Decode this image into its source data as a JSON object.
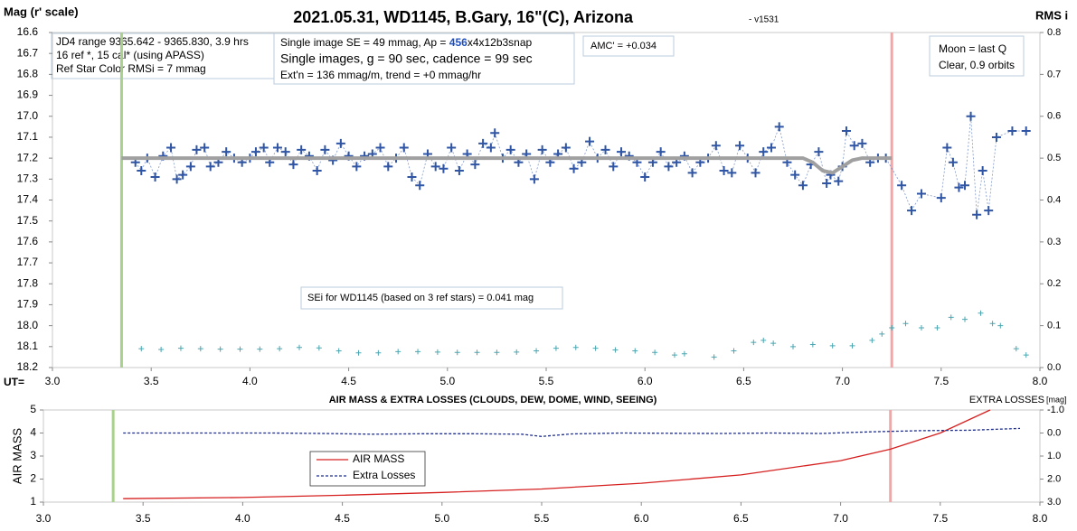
{
  "chart_data": [
    {
      "type": "scatter",
      "title": "2021.05.31, WD1145, B.Gary, 16\"(C), Arizona",
      "version": "- v1531",
      "y_label": "Mag (r' scale)",
      "y2_label": "RMS i",
      "x_label": "UT=",
      "notes_left": [
        "JD4 range 9365.642 - 9365.830, 3.9 hrs",
        "16 ref *, 15 cal* (using APASS)",
        "Ref Star Color RMSi = 7 mmag"
      ],
      "notes_se": {
        "line1_a": "Single image SE = 49 mmag, Ap = ",
        "line1_b": "456",
        "line1_c": "x4x12b3snap",
        "line2": "Single images, g = 90 sec, cadence = 99 sec",
        "line3": "Ext'n = 136 mmag/m, trend = +0 mmag/hr"
      },
      "amc": "AMC' = +0.034",
      "moon": [
        "Moon = last Q",
        "Clear, 0.9 orbits"
      ],
      "sei": "SEi for WD1145 (based on 3 ref stars) = 0.041 mag",
      "xlim": [
        3.0,
        8.0
      ],
      "xticks": [
        {
          "value": 3,
          "label": "3.0"
        },
        3.5,
        {
          "value": 4,
          "label": "4.0"
        },
        4.5,
        {
          "value": 5,
          "label": "5.0"
        },
        5.5,
        {
          "value": 6,
          "label": "6.0"
        },
        6.5,
        {
          "value": 7,
          "label": "7.0"
        },
        7.5,
        {
          "value": 8,
          "label": "8.0"
        }
      ],
      "ylim": [
        18.2,
        16.6
      ],
      "yticks": [
        16.6,
        16.7,
        16.8,
        16.9,
        {
          "value": 17,
          "label": "17.0"
        },
        17.1,
        17.2,
        17.3,
        17.4,
        17.5,
        17.6,
        17.7,
        17.8,
        17.9,
        {
          "value": 18,
          "label": "18.0"
        },
        18.1,
        18.2
      ],
      "y2lim": [
        0,
        0.8
      ],
      "y2ticks": [
        {
          "value": 0,
          "label": "0.0"
        },
        0.1,
        0.2,
        0.3,
        0.4,
        0.5,
        0.6,
        0.7,
        0.8
      ],
      "vlines": [
        {
          "x": 3.35,
          "color": "#a9d18e"
        },
        {
          "x": 7.25,
          "color": "#f4a6a6"
        }
      ],
      "series": [
        {
          "color": "#2f55a4",
          "marker": "plus",
          "line": "dotted",
          "x": [
            3.42,
            3.45,
            3.48,
            3.52,
            3.56,
            3.6,
            3.63,
            3.66,
            3.7,
            3.73,
            3.77,
            3.8,
            3.84,
            3.88,
            3.92,
            3.96,
            4.0,
            4.03,
            4.07,
            4.1,
            4.14,
            4.18,
            4.22,
            4.26,
            4.3,
            4.34,
            4.38,
            4.42,
            4.46,
            4.5,
            4.54,
            4.58,
            4.62,
            4.66,
            4.7,
            4.74,
            4.78,
            4.82,
            4.86,
            4.9,
            4.94,
            4.98,
            5.02,
            5.06,
            5.1,
            5.14,
            5.18,
            5.22,
            5.24,
            5.28,
            5.32,
            5.36,
            5.4,
            5.44,
            5.48,
            5.52,
            5.56,
            5.6,
            5.64,
            5.68,
            5.72,
            5.76,
            5.8,
            5.84,
            5.88,
            5.92,
            5.96,
            6.0,
            6.04,
            6.08,
            6.12,
            6.16,
            6.2,
            6.24,
            6.28,
            6.32,
            6.36,
            6.4,
            6.44,
            6.48,
            6.52,
            6.56,
            6.6,
            6.64,
            6.68,
            6.72,
            6.76,
            6.8,
            6.84,
            6.88,
            6.92,
            6.94,
            6.98,
            7.0,
            7.02,
            7.06,
            7.1,
            7.14,
            7.18,
            7.22,
            7.3,
            7.35,
            7.4,
            7.5,
            7.53,
            7.56,
            7.59,
            7.62,
            7.65,
            7.68,
            7.71,
            7.74,
            7.78,
            7.86,
            7.93
          ],
          "values": [
            17.22,
            17.26,
            17.2,
            17.29,
            17.19,
            17.15,
            17.3,
            17.28,
            17.24,
            17.16,
            17.15,
            17.24,
            17.22,
            17.17,
            17.2,
            17.22,
            17.2,
            17.17,
            17.15,
            17.22,
            17.15,
            17.17,
            17.23,
            17.16,
            17.19,
            17.26,
            17.16,
            17.21,
            17.13,
            17.19,
            17.24,
            17.19,
            17.18,
            17.15,
            17.24,
            17.2,
            17.15,
            17.29,
            17.33,
            17.18,
            17.24,
            17.25,
            17.15,
            17.26,
            17.18,
            17.23,
            17.13,
            17.15,
            17.08,
            17.2,
            17.16,
            17.22,
            17.18,
            17.3,
            17.16,
            17.22,
            17.18,
            17.15,
            17.25,
            17.22,
            17.12,
            17.2,
            17.16,
            17.24,
            17.17,
            17.19,
            17.22,
            17.29,
            17.22,
            17.17,
            17.24,
            17.22,
            17.19,
            17.27,
            17.22,
            17.2,
            17.14,
            17.26,
            17.27,
            17.14,
            17.2,
            17.27,
            17.17,
            17.15,
            17.05,
            17.22,
            17.28,
            17.33,
            17.23,
            17.17,
            17.32,
            17.28,
            17.31,
            17.24,
            17.07,
            17.14,
            17.13,
            17.22,
            17.2,
            17.2,
            17.33,
            17.45,
            17.37,
            17.39,
            17.15,
            17.22,
            17.34,
            17.33,
            17.0,
            17.47,
            17.26,
            17.45,
            17.1,
            17.07,
            17.07
          ]
        },
        {
          "color": "#a0a0a0",
          "line": "thick",
          "x": [
            3.35,
            6.8,
            6.85,
            6.9,
            6.95,
            7.0,
            7.05,
            7.1,
            7.25
          ],
          "values": [
            17.2,
            17.2,
            17.22,
            17.26,
            17.27,
            17.24,
            17.21,
            17.2,
            17.2
          ]
        },
        {
          "color": "#4aa6b0",
          "marker": "plus-small",
          "axis": "y2",
          "x": [
            3.45,
            3.55,
            3.65,
            3.75,
            3.85,
            3.95,
            4.05,
            4.15,
            4.25,
            4.35,
            4.45,
            4.55,
            4.65,
            4.75,
            4.85,
            4.95,
            5.05,
            5.15,
            5.25,
            5.35,
            5.45,
            5.55,
            5.65,
            5.75,
            5.85,
            5.95,
            6.05,
            6.15,
            6.2,
            6.35,
            6.45,
            6.55,
            6.6,
            6.65,
            6.75,
            6.85,
            6.95,
            7.05,
            7.15,
            7.2,
            7.25,
            7.32,
            7.4,
            7.48,
            7.55,
            7.62,
            7.7,
            7.76,
            7.8,
            7.88,
            7.93
          ],
          "values": [
            0.045,
            0.043,
            0.046,
            0.045,
            0.044,
            0.044,
            0.044,
            0.045,
            0.048,
            0.047,
            0.04,
            0.035,
            0.035,
            0.038,
            0.038,
            0.037,
            0.036,
            0.036,
            0.036,
            0.037,
            0.04,
            0.046,
            0.048,
            0.046,
            0.042,
            0.04,
            0.036,
            0.03,
            0.033,
            0.025,
            0.04,
            0.06,
            0.065,
            0.058,
            0.05,
            0.055,
            0.052,
            0.052,
            0.065,
            0.08,
            0.095,
            0.105,
            0.095,
            0.095,
            0.12,
            0.115,
            0.13,
            0.105,
            0.1,
            0.045,
            0.03
          ]
        }
      ]
    },
    {
      "type": "line",
      "title": "AIR MASS & EXTRA LOSSES (CLOUDS, DEW, DOME, WIND, SEEING)",
      "y_label": "AIR MASS",
      "y2_label": "EXTRA LOSSES",
      "y2_unit": "[mag]",
      "xlim": [
        3.0,
        8.0
      ],
      "xticks": [
        {
          "value": 3,
          "label": "3.0"
        },
        3.5,
        {
          "value": 4,
          "label": "4.0"
        },
        4.5,
        {
          "value": 5,
          "label": "5.0"
        },
        5.5,
        {
          "value": 6,
          "label": "6.0"
        },
        6.5,
        {
          "value": 7,
          "label": "7.0"
        },
        7.5,
        {
          "value": 8,
          "label": "8.0"
        }
      ],
      "ylim": [
        1,
        5
      ],
      "yticks": [
        1,
        2,
        3,
        4,
        5
      ],
      "y2lim": [
        3,
        -1
      ],
      "y2ticks": [
        {
          "value": -1,
          "label": "-1.0"
        },
        {
          "value": 0,
          "label": "0.0"
        },
        {
          "value": 1,
          "label": "1.0"
        },
        {
          "value": 2,
          "label": "2.0"
        },
        {
          "value": 3,
          "label": "3.0"
        }
      ],
      "vlines": [
        {
          "x": 3.35,
          "color": "#a9d18e"
        },
        {
          "x": 7.25,
          "color": "#f4a6a6"
        }
      ],
      "series": [
        {
          "name": "AIR MASS",
          "color": "#d62020",
          "line": "solid",
          "x": [
            3.4,
            4.0,
            4.5,
            5.0,
            5.5,
            6.0,
            6.5,
            7.0,
            7.25,
            7.5,
            7.75
          ],
          "values": [
            1.15,
            1.2,
            1.3,
            1.42,
            1.57,
            1.82,
            2.18,
            2.8,
            3.3,
            4.0,
            5.0
          ]
        },
        {
          "name": "Extra Losses",
          "color": "#1f2f8f",
          "line": "dashed",
          "axis": "y2",
          "x": [
            3.4,
            3.65,
            3.9,
            4.15,
            4.4,
            4.65,
            4.9,
            5.15,
            5.4,
            5.5,
            5.65,
            5.9,
            6.15,
            6.4,
            6.65,
            6.9,
            7.15,
            7.4,
            7.65,
            7.9
          ],
          "values": [
            0.0,
            0.0,
            0.0,
            0.0,
            0.02,
            0.05,
            0.03,
            0.03,
            0.05,
            0.15,
            0.04,
            0.0,
            0.01,
            0.02,
            0.0,
            0.02,
            -0.05,
            -0.1,
            -0.12,
            -0.2
          ]
        }
      ]
    }
  ]
}
